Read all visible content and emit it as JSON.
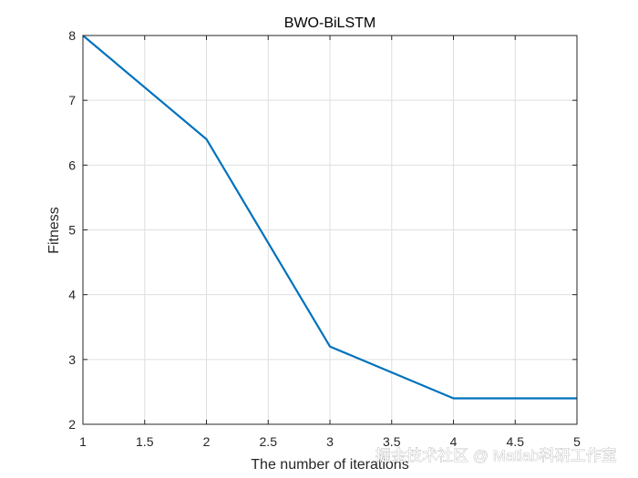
{
  "chart_data": {
    "type": "line",
    "title": "BWO-BiLSTM",
    "xlabel": "The number of iterations",
    "ylabel": "Fitness",
    "xlim": [
      1,
      5
    ],
    "ylim": [
      2,
      8
    ],
    "xticks": [
      1,
      1.5,
      2,
      2.5,
      3,
      3.5,
      4,
      4.5,
      5
    ],
    "xtick_labels": [
      "1",
      "1.5",
      "2",
      "2.5",
      "3",
      "3.5",
      "4",
      "4.5",
      "5"
    ],
    "yticks": [
      2,
      3,
      4,
      5,
      6,
      7,
      8
    ],
    "ytick_labels": [
      "2",
      "3",
      "4",
      "5",
      "6",
      "7",
      "8"
    ],
    "grid": true,
    "series": [
      {
        "color": "#0072bd",
        "x": [
          1,
          2,
          3,
          4,
          5
        ],
        "y": [
          8,
          6.4,
          3.2,
          2.4,
          2.4
        ]
      }
    ]
  },
  "watermark": "掘金技术社区 @ Matlab科研工作室"
}
